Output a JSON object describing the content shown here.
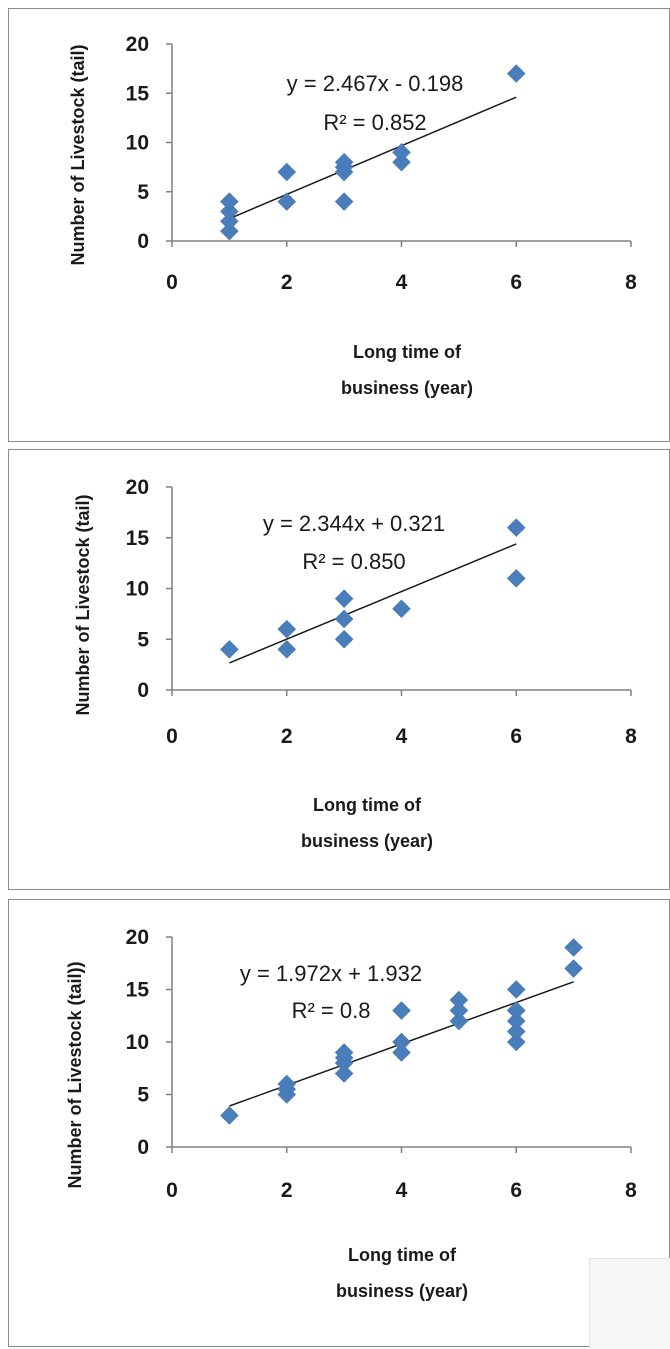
{
  "colors": {
    "marker": "#4a7ebb",
    "trendline": "#1a1a1a",
    "axis": "#808080",
    "text": "#1a1a1a",
    "panel_border": "#8c8c8c"
  },
  "chart_data": [
    {
      "type": "scatter",
      "title": "",
      "xlabel": "Long time of business (year)",
      "xlabel_lines": [
        "Long time of",
        "business (year)"
      ],
      "ylabel": "Number of Livestock (tail)",
      "xlim": [
        0,
        8
      ],
      "ylim": [
        0,
        20
      ],
      "x_ticks": [
        0,
        2,
        4,
        6,
        8
      ],
      "y_ticks": [
        0,
        5,
        10,
        15,
        20
      ],
      "grid": false,
      "legend": "none",
      "marker": "diamond",
      "x": [
        1,
        1,
        1,
        1,
        2,
        2,
        3,
        3,
        3,
        3,
        4,
        4,
        6
      ],
      "y": [
        1,
        2,
        3,
        4,
        4,
        7,
        4,
        7,
        7.5,
        8,
        8,
        9,
        17
      ],
      "trendline": {
        "type": "linear",
        "slope": 2.467,
        "intercept": -0.198,
        "x_range": [
          1,
          6
        ],
        "equation_label": "y = 2.467x - 0.198",
        "r2_label": "R² = 0.852"
      }
    },
    {
      "type": "scatter",
      "title": "",
      "xlabel": "Long time of business (year)",
      "xlabel_lines": [
        "Long time of",
        "business (year)"
      ],
      "ylabel": "Number of Livestock (tail)",
      "xlim": [
        0,
        8
      ],
      "ylim": [
        0,
        20
      ],
      "x_ticks": [
        0,
        2,
        4,
        6,
        8
      ],
      "y_ticks": [
        0,
        5,
        10,
        15,
        20
      ],
      "grid": false,
      "legend": "none",
      "marker": "diamond",
      "x": [
        1,
        2,
        2,
        3,
        3,
        3,
        4,
        6,
        6
      ],
      "y": [
        4,
        4,
        6,
        5,
        7,
        9,
        8,
        11,
        16
      ],
      "trendline": {
        "type": "linear",
        "slope": 2.344,
        "intercept": 0.321,
        "x_range": [
          1,
          6
        ],
        "equation_label": "y = 2.344x + 0.321",
        "r2_label": "R² = 0.850"
      }
    },
    {
      "type": "scatter",
      "title": "",
      "xlabel": "Long time of business (year)",
      "xlabel_lines": [
        "Long time of",
        "business (year)"
      ],
      "ylabel": "Number of Livestock (tail))",
      "xlim": [
        0,
        8
      ],
      "ylim": [
        0,
        20
      ],
      "x_ticks": [
        0,
        2,
        4,
        6,
        8
      ],
      "y_ticks": [
        0,
        5,
        10,
        15,
        20
      ],
      "grid": false,
      "legend": "none",
      "marker": "diamond",
      "x": [
        1,
        2,
        2,
        2,
        3,
        3,
        3,
        3,
        4,
        4,
        4,
        5,
        5,
        5,
        6,
        6,
        6,
        6,
        6,
        6,
        7,
        7
      ],
      "y": [
        3,
        5,
        5.5,
        6,
        7,
        8,
        8.5,
        9,
        9,
        10,
        13,
        12,
        13,
        14,
        10,
        11,
        12,
        13,
        13,
        15,
        17,
        19
      ],
      "trendline": {
        "type": "linear",
        "slope": 1.972,
        "intercept": 1.932,
        "x_range": [
          1,
          7
        ],
        "equation_label": "y = 1.972x + 1.932",
        "r2_label": "R² = 0.8"
      }
    }
  ]
}
